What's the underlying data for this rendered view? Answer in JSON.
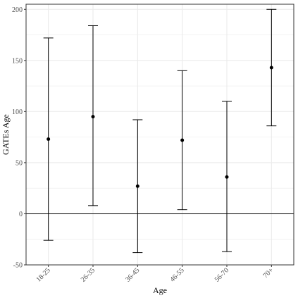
{
  "chart_data": {
    "type": "errorbar",
    "xlabel": "Age",
    "ylabel": "GATEs Age",
    "categories": [
      "18-25",
      "26-35",
      "36-45",
      "46-55",
      "56-70",
      "70+"
    ],
    "estimates": [
      73,
      95,
      27,
      72,
      36,
      143
    ],
    "lower": [
      -26,
      8,
      -38,
      4,
      -37,
      86
    ],
    "upper": [
      172,
      184,
      92,
      140,
      110,
      200
    ],
    "ylim": [
      -50,
      205
    ],
    "yticks": [
      -50,
      0,
      50,
      100,
      150,
      200
    ],
    "reference_line": 0,
    "grid": true,
    "colors": {
      "grid": "#ebebeb",
      "mark": "#000000",
      "panel_border": "#333333"
    }
  }
}
